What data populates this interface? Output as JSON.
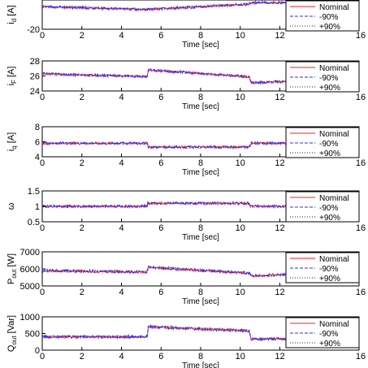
{
  "colors": {
    "nominal": "#ff1a1a",
    "minus90": "#2b2bff",
    "plus90": "#222222",
    "axis": "#000000"
  },
  "legend": {
    "position": "right",
    "entries": [
      "Nominal",
      "-90%",
      "+90%"
    ]
  },
  "chart_data": [
    {
      "type": "line",
      "ylabel_main": "i",
      "ylabel_sub": "d",
      "ylabel_unit": " [A]",
      "xlabel": "Time [sec]",
      "xlim": [
        0,
        16
      ],
      "ylim": [
        -20,
        0
      ],
      "yticks": [
        "-20"
      ],
      "xticks": [
        "0",
        "2",
        "4",
        "6",
        "8",
        "10",
        "12",
        "16"
      ],
      "legend": [
        "Nominal",
        "-90%",
        "+90%"
      ],
      "series": [
        {
          "name": "Nominal",
          "x": [
            0,
            5.2,
            5.35,
            10.4,
            10.55,
            16
          ],
          "y": [
            -4.5,
            -6.5,
            -6.5,
            -2.8,
            -1.8,
            -2.2
          ]
        },
        {
          "name": "-90%",
          "x": [
            0,
            5.2,
            5.35,
            10.4,
            10.55,
            16
          ],
          "y": [
            -4.5,
            -6.5,
            -6.5,
            -2.8,
            -1.8,
            -2.2
          ]
        },
        {
          "name": "+90%",
          "x": [
            0,
            5.2,
            5.35,
            10.4,
            10.55,
            16
          ],
          "y": [
            -4.5,
            -6.5,
            -6.5,
            -2.8,
            -1.8,
            -2.2
          ]
        }
      ]
    },
    {
      "type": "line",
      "ylabel_main": "i",
      "ylabel_sub": "F",
      "ylabel_unit": " [A]",
      "xlabel": "Time [sec]",
      "xlim": [
        0,
        16
      ],
      "ylim": [
        24,
        28
      ],
      "yticks": [
        "24",
        "26",
        "28"
      ],
      "xticks": [
        "0",
        "2",
        "4",
        "6",
        "8",
        "10",
        "12",
        "16"
      ],
      "legend": [
        "Nominal",
        "-90%",
        "+90%"
      ],
      "series": [
        {
          "name": "Nominal",
          "x": [
            0,
            5.3,
            5.35,
            10.45,
            10.55,
            16
          ],
          "y": [
            26.3,
            25.9,
            26.8,
            25.9,
            25.1,
            25.6
          ]
        },
        {
          "name": "-90%",
          "x": [
            0,
            5.3,
            5.35,
            10.45,
            10.55,
            16
          ],
          "y": [
            26.3,
            25.9,
            26.8,
            25.9,
            25.1,
            25.6
          ]
        },
        {
          "name": "+90%",
          "x": [
            0,
            5.3,
            5.35,
            10.45,
            10.55,
            16
          ],
          "y": [
            26.3,
            25.9,
            26.8,
            25.9,
            25.1,
            25.6
          ]
        }
      ]
    },
    {
      "type": "line",
      "ylabel_main": "i",
      "ylabel_sub": "q",
      "ylabel_unit": " [A]",
      "xlabel": "Time [sec]",
      "xlim": [
        0,
        16
      ],
      "ylim": [
        4,
        8
      ],
      "yticks": [
        "4",
        "6",
        "8"
      ],
      "xticks": [
        "0",
        "2",
        "4",
        "6",
        "8",
        "10",
        "12",
        "16"
      ],
      "legend": [
        "Nominal",
        "-90%",
        "+90%"
      ],
      "series": [
        {
          "name": "Nominal",
          "x": [
            0,
            5.3,
            5.35,
            10.45,
            10.55,
            16
          ],
          "y": [
            5.8,
            5.8,
            5.3,
            5.3,
            5.8,
            5.8
          ]
        },
        {
          "name": "-90%",
          "x": [
            0,
            5.3,
            5.35,
            10.45,
            10.55,
            16
          ],
          "y": [
            5.8,
            5.8,
            5.3,
            5.3,
            5.8,
            5.8
          ]
        },
        {
          "name": "+90%",
          "x": [
            0,
            5.3,
            5.35,
            10.45,
            10.55,
            16
          ],
          "y": [
            5.8,
            5.8,
            5.3,
            5.3,
            5.8,
            5.8
          ]
        }
      ]
    },
    {
      "type": "line",
      "ylabel_main": "ω",
      "ylabel_sub": "",
      "ylabel_unit": "",
      "xlabel": "Time [sec]",
      "xlim": [
        0,
        16
      ],
      "ylim": [
        0.5,
        1.5
      ],
      "yticks": [
        "0.5",
        "1",
        "1.5"
      ],
      "xticks": [
        "0",
        "2",
        "4",
        "6",
        "8",
        "10",
        "12",
        "16"
      ],
      "legend": [
        "Nominal",
        "-90%",
        "+90%"
      ],
      "series": [
        {
          "name": "Nominal",
          "x": [
            0,
            5.3,
            5.32,
            5.36,
            10.45,
            10.5,
            16
          ],
          "y": [
            1.0,
            1.0,
            1.15,
            1.1,
            1.1,
            1.0,
            1.0
          ]
        },
        {
          "name": "-90%",
          "x": [
            0,
            5.3,
            5.32,
            5.36,
            10.45,
            10.5,
            16
          ],
          "y": [
            1.0,
            1.0,
            1.15,
            1.1,
            1.1,
            1.0,
            1.0
          ]
        },
        {
          "name": "+90%",
          "x": [
            0,
            5.3,
            5.32,
            5.36,
            10.45,
            10.5,
            16
          ],
          "y": [
            1.0,
            1.0,
            1.15,
            1.1,
            1.1,
            1.0,
            1.0
          ]
        }
      ]
    },
    {
      "type": "line",
      "ylabel_main": "P",
      "ylabel_sub": "out",
      "ylabel_unit": " [W]",
      "xlabel": "Time [sec]",
      "xlim": [
        0,
        16
      ],
      "ylim": [
        5000,
        7000
      ],
      "yticks": [
        "5000",
        "6000",
        "7000"
      ],
      "xticks": [
        "0",
        "2",
        "4",
        "6",
        "8",
        "10",
        "12",
        "16"
      ],
      "legend": [
        "Nominal",
        "-90%",
        "+90%"
      ],
      "series": [
        {
          "name": "Nominal",
          "x": [
            0,
            5.3,
            5.35,
            10.45,
            10.55,
            16
          ],
          "y": [
            5900,
            5820,
            6100,
            5750,
            5600,
            5750
          ]
        },
        {
          "name": "-90%",
          "x": [
            0,
            5.3,
            5.35,
            10.45,
            10.55,
            16
          ],
          "y": [
            5900,
            5820,
            6100,
            5750,
            5600,
            5750
          ]
        },
        {
          "name": "+90%",
          "x": [
            0,
            5.3,
            5.35,
            10.45,
            10.55,
            16
          ],
          "y": [
            5900,
            5820,
            6100,
            5750,
            5600,
            5750
          ]
        }
      ]
    },
    {
      "type": "line",
      "ylabel_main": "Q",
      "ylabel_sub": "out",
      "ylabel_unit": " [Var]",
      "xlabel": "Time [sec]",
      "xlim": [
        0,
        16
      ],
      "ylim": [
        0,
        1000
      ],
      "yticks": [
        "0",
        "500",
        "1000"
      ],
      "xticks": [
        "0",
        "2",
        "4",
        "6",
        "8",
        "10",
        "12",
        "16"
      ],
      "legend": [
        "Nominal",
        "-90%",
        "+90%"
      ],
      "series": [
        {
          "name": "Nominal",
          "x": [
            0,
            5.3,
            5.35,
            10.45,
            10.55,
            16
          ],
          "y": [
            400,
            400,
            700,
            580,
            330,
            380
          ]
        },
        {
          "name": "-90%",
          "x": [
            0,
            5.3,
            5.35,
            10.45,
            10.55,
            16
          ],
          "y": [
            400,
            400,
            700,
            580,
            330,
            380
          ]
        },
        {
          "name": "+90%",
          "x": [
            0,
            5.3,
            5.35,
            10.45,
            10.55,
            16
          ],
          "y": [
            400,
            400,
            700,
            580,
            330,
            380
          ]
        }
      ]
    }
  ]
}
